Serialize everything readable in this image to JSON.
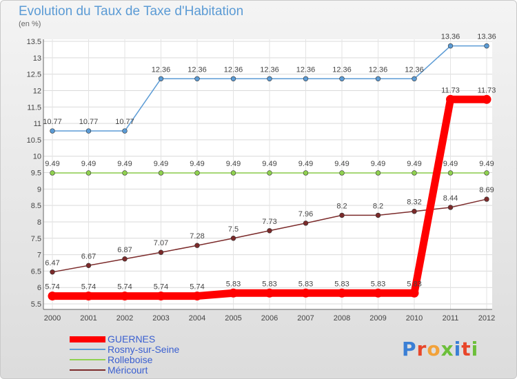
{
  "chart_data": {
    "type": "line",
    "title": "Evolution du Taux de Taxe d'Habitation",
    "ylabel": "(en %)",
    "x": [
      "2000",
      "2001",
      "2002",
      "2003",
      "2004",
      "2005",
      "2006",
      "2007",
      "2008",
      "2009",
      "2010",
      "2011",
      "2012"
    ],
    "yticks": [
      "5.5",
      "6",
      "6.5",
      "7",
      "7.5",
      "8",
      "8.5",
      "9",
      "9.5",
      "10",
      "10.5",
      "11",
      "11.5",
      "12",
      "12.5",
      "13",
      "13.5"
    ],
    "ylim": [
      5.5,
      13.5
    ],
    "grid": true,
    "legend_position": "bottom-left",
    "series": [
      {
        "name": "GUERNES",
        "color": "#ff0000",
        "values": [
          5.74,
          5.74,
          5.74,
          5.74,
          5.74,
          5.83,
          5.83,
          5.83,
          5.83,
          5.83,
          5.83,
          11.73,
          11.73
        ],
        "labels": [
          "5.74",
          "5.74",
          "5.74",
          "5.74",
          "5.74",
          "5.83",
          "5.83",
          "5.83",
          "5.83",
          "5.83",
          "5.83",
          "11.73",
          "11.73"
        ]
      },
      {
        "name": "Rosny-sur-Seine",
        "color": "#5b9bd5",
        "values": [
          10.77,
          10.77,
          10.77,
          12.36,
          12.36,
          12.36,
          12.36,
          12.36,
          12.36,
          12.36,
          12.36,
          13.36,
          13.36
        ],
        "labels": [
          "10.77",
          "10.77",
          "10.77",
          "12.36",
          "12.36",
          "12.36",
          "12.36",
          "12.36",
          "12.36",
          "12.36",
          "12.36",
          "13.36",
          "13.36"
        ]
      },
      {
        "name": "Rolleboise",
        "color": "#8fd14f",
        "values": [
          9.49,
          9.49,
          9.49,
          9.49,
          9.49,
          9.49,
          9.49,
          9.49,
          9.49,
          9.49,
          9.49,
          9.49,
          9.49
        ],
        "labels": [
          "9.49",
          "9.49",
          "9.49",
          "9.49",
          "9.49",
          "9.49",
          "9.49",
          "9.49",
          "9.49",
          "9.49",
          "9.49",
          "9.49",
          "9.49"
        ]
      },
      {
        "name": "Méricourt",
        "color": "#7b2a2a",
        "values": [
          6.47,
          6.67,
          6.87,
          7.07,
          7.28,
          7.5,
          7.73,
          7.96,
          8.2,
          8.2,
          8.32,
          8.44,
          8.69
        ],
        "labels": [
          "6.47",
          "6.67",
          "6.87",
          "7.07",
          "7.28",
          "7.5",
          "7.73",
          "7.96",
          "8.2",
          "8.2",
          "8.32",
          "8.44",
          "8.69"
        ]
      }
    ]
  },
  "logo": {
    "text": "Proxiti",
    "colors": [
      "#3a7fd5",
      "#e8462a",
      "#f2a23a",
      "#6cbf3a",
      "#3a7fd5",
      "#e8462a",
      "#6cbf3a"
    ]
  }
}
